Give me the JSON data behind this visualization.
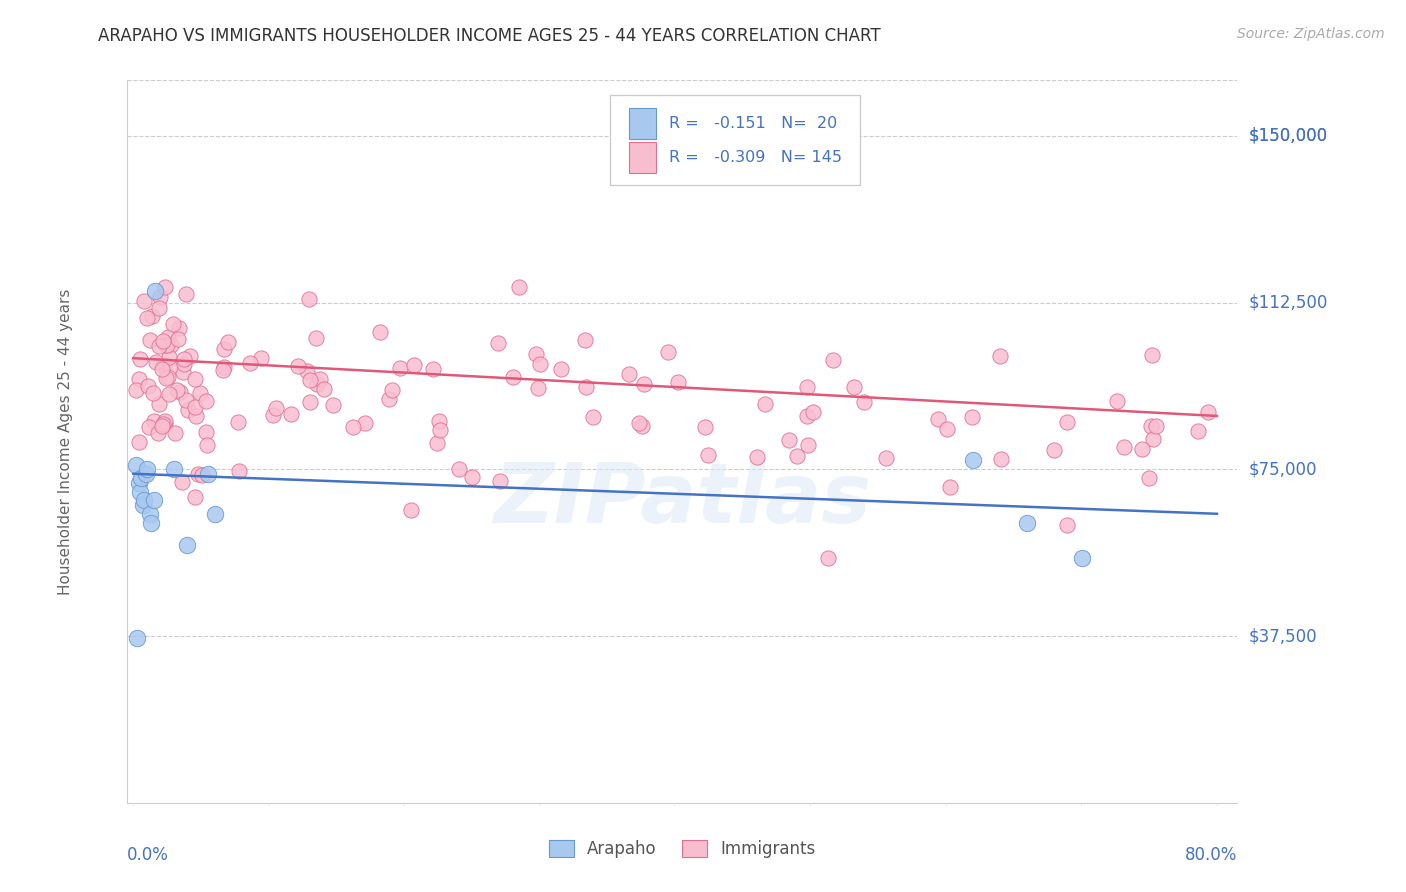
{
  "title": "ARAPAHO VS IMMIGRANTS HOUSEHOLDER INCOME AGES 25 - 44 YEARS CORRELATION CHART",
  "source": "Source: ZipAtlas.com",
  "ylabel": "Householder Income Ages 25 - 44 years",
  "ytick_labels": [
    "$37,500",
    "$75,000",
    "$112,500",
    "$150,000"
  ],
  "ytick_values": [
    37500,
    75000,
    112500,
    150000
  ],
  "ylim": [
    0,
    162500
  ],
  "xlim": [
    -0.005,
    0.815
  ],
  "watermark": "ZIPatlas",
  "arapaho_R": -0.151,
  "arapaho_N": 20,
  "immigrants_R": -0.309,
  "immigrants_N": 145,
  "arapaho_color": "#a8c8f0",
  "arapaho_edge_color": "#6699cc",
  "arapaho_line_color": "#4472c4",
  "immigrants_color": "#f9bdd0",
  "immigrants_edge_color": "#e07090",
  "immigrants_line_color": "#e05878",
  "ara_trend_x": [
    0.0,
    0.8
  ],
  "ara_trend_y": [
    74000,
    65000
  ],
  "imm_trend_x": [
    0.0,
    0.8
  ],
  "imm_trend_y": [
    100000,
    87000
  ],
  "legend_title_color": "#4472c4",
  "legend_R_color_ara": "#4472c4",
  "legend_R_color_imm": "#e05878",
  "bottom_label_color": "#4472c4",
  "right_label_color": "#4472c4",
  "ylabel_color": "#666666",
  "title_color": "#333333",
  "source_color": "#aaaaaa",
  "grid_color": "#cccccc",
  "spine_color": "#cccccc"
}
